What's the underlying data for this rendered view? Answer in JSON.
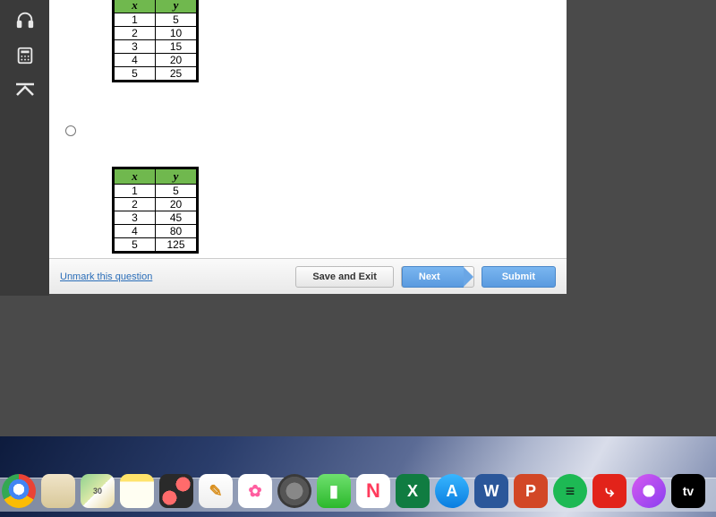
{
  "sidebar": {
    "icons": [
      "headphones-icon",
      "calculator-icon",
      "collapse-up-icon"
    ]
  },
  "tables": {
    "top": {
      "header_bg": "#70b84e",
      "cols": [
        "x",
        "y"
      ],
      "rows": [
        [
          "1",
          "5"
        ],
        [
          "2",
          "10"
        ],
        [
          "3",
          "15"
        ],
        [
          "4",
          "20"
        ],
        [
          "5",
          "25"
        ]
      ]
    },
    "bottom": {
      "header_bg": "#70b84e",
      "cols": [
        "x",
        "y"
      ],
      "rows": [
        [
          "1",
          "5"
        ],
        [
          "2",
          "20"
        ],
        [
          "3",
          "45"
        ],
        [
          "4",
          "80"
        ],
        [
          "5",
          "125"
        ]
      ]
    }
  },
  "footer": {
    "unmark": "Unmark this question",
    "save_exit": "Save and Exit",
    "next": "Next",
    "submit": "Submit"
  },
  "dock": [
    {
      "name": "chrome",
      "bg": "radial-gradient(circle at 50% 45%, #fff 0 22%, #4285f4 22% 40%, transparent 40%), conic-gradient(#ea4335 0 120deg,#fbbc05 120deg 240deg,#34a853 240deg 360deg)",
      "label": "",
      "round": true,
      "dot": true
    },
    {
      "name": "contacts",
      "bg": "linear-gradient(#f0e4c8,#d8c89a)",
      "label": ""
    },
    {
      "name": "maps",
      "bg": "linear-gradient(135deg,#8fd18f,#dde9a8 50%,#fff 50%,#e8d9a0)",
      "label": "30",
      "color": "#555",
      "fs": "9px"
    },
    {
      "name": "notes",
      "bg": "linear-gradient(#ffe36b 0 22%,#fffef2 22%)",
      "label": ""
    },
    {
      "name": "photobooth",
      "bg": "radial-gradient(circle at 70% 30%, #ff6b6b 0 8px, transparent 8px), radial-gradient(circle at 30% 70%, #ff6b6b 0 8px, transparent 8px), #2a2a2a",
      "label": ""
    },
    {
      "name": "pages",
      "bg": "linear-gradient(#fff,#eee)",
      "label": "✎",
      "color": "#d99020"
    },
    {
      "name": "photos",
      "bg": "#fff",
      "label": "✿",
      "color": "#ff5ea0"
    },
    {
      "name": "settings",
      "bg": "radial-gradient(circle,#888 0 35%,#555 35% 60%,#3a3a3a 60%)",
      "label": "",
      "round": true
    },
    {
      "name": "facetime",
      "bg": "linear-gradient(#6ee06e,#2cb82c)",
      "label": "▮",
      "color": "#fff"
    },
    {
      "name": "news",
      "bg": "#fff",
      "label": "N",
      "color": "#ff3b5c",
      "fs": "22px"
    },
    {
      "name": "excel",
      "bg": "#107c41",
      "label": "X",
      "color": "#fff"
    },
    {
      "name": "appstore",
      "bg": "linear-gradient(#38b6ff,#0a7de0)",
      "label": "A",
      "color": "#fff",
      "round": true
    },
    {
      "name": "word",
      "bg": "#2b579a",
      "label": "W",
      "color": "#fff"
    },
    {
      "name": "powerpoint",
      "bg": "#d24726",
      "label": "P",
      "color": "#fff"
    },
    {
      "name": "spotify",
      "bg": "#1db954",
      "label": "≡",
      "color": "#111",
      "round": true,
      "dot": true
    },
    {
      "name": "acrobat",
      "bg": "#e2231a",
      "label": "⤷",
      "color": "#fff"
    },
    {
      "name": "podcasts",
      "bg": "radial-gradient(circle,#fff 0 25%, transparent 25%), linear-gradient(135deg,#d65af0,#8a3ef0)",
      "label": "",
      "round": true
    },
    {
      "name": "appletv",
      "bg": "#000",
      "label": "tv",
      "color": "#fff",
      "fs": "14px"
    }
  ]
}
